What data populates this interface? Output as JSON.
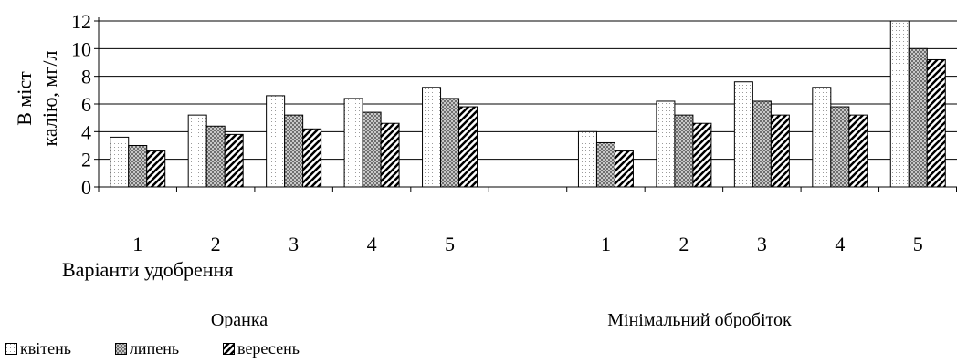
{
  "chart_data": {
    "type": "bar",
    "groups": [
      {
        "label": "Оранка",
        "categories": [
          "1",
          "2",
          "3",
          "4",
          "5"
        ]
      },
      {
        "label": "Мінімальний обробіток",
        "categories": [
          "1",
          "2",
          "3",
          "4",
          "5"
        ]
      }
    ],
    "series": [
      {
        "name": "квітень",
        "values": [
          3.6,
          5.2,
          6.6,
          6.4,
          7.2,
          4.0,
          6.2,
          7.6,
          7.2,
          12.0
        ]
      },
      {
        "name": "липень",
        "values": [
          3.0,
          4.4,
          5.2,
          5.4,
          6.4,
          3.2,
          5.2,
          6.2,
          5.8,
          10.0
        ]
      },
      {
        "name": "вересень",
        "values": [
          2.6,
          3.8,
          4.2,
          4.6,
          5.8,
          2.6,
          4.6,
          5.2,
          5.2,
          9.2
        ]
      }
    ],
    "ylabel_line1": "В міст",
    "ylabel_line2": "калію,  мг/л",
    "xlabel": "Варіанти удобрення",
    "ylim": [
      0,
      12
    ],
    "yticks": [
      "0",
      "2",
      "4",
      "6",
      "8",
      "10",
      "12"
    ],
    "grid": true,
    "legend_position": "bottom-left",
    "colors": {
      "axis": "#000000",
      "grid": "#000000",
      "bar_border": "#000000"
    }
  }
}
